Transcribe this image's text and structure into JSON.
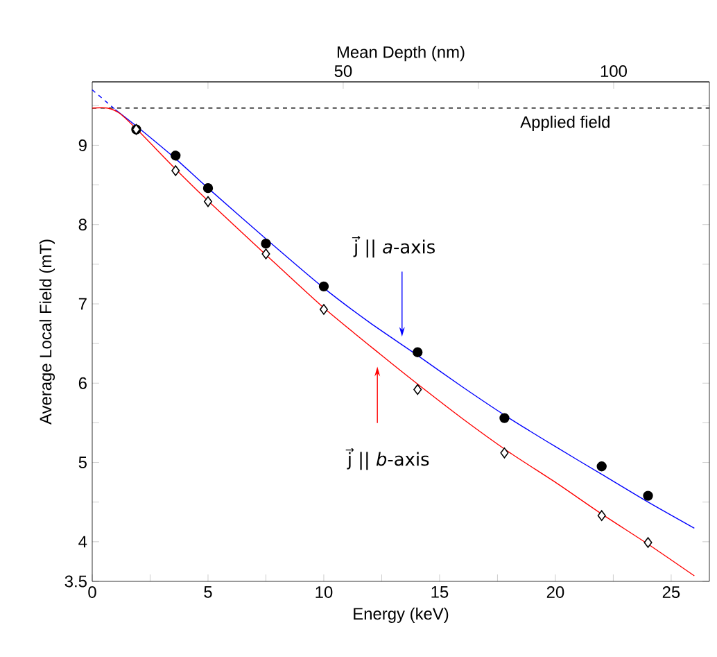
{
  "chart_data": {
    "type": "scatter",
    "xlabel": "Energy (keV)",
    "ylabel": "Average Local Field (mT)",
    "x2label": "Mean Depth (nm)",
    "xlim": [
      0,
      26.65
    ],
    "ylim": [
      3.5,
      9.8
    ],
    "x2lim": [
      3.6,
      117.7
    ],
    "xticks": [
      0,
      {
        "value": 2.5,
        "label": null
      },
      5,
      {
        "value": 7.5,
        "label": null
      },
      10,
      {
        "value": 12.5,
        "label": null
      },
      15,
      {
        "value": 17.5,
        "label": null
      },
      20,
      {
        "value": 22.5,
        "label": null
      },
      25
    ],
    "yticks": [
      3.5,
      4,
      {
        "value": 4.5,
        "label": null
      },
      5,
      {
        "value": 5.5,
        "label": null
      },
      6,
      {
        "value": 6.5,
        "label": null
      },
      7,
      {
        "value": 7.5,
        "label": null
      },
      8,
      {
        "value": 8.5,
        "label": null
      },
      9,
      {
        "value": 9.5,
        "label": null
      }
    ],
    "x2ticks": [
      {
        "value": 25,
        "label": null
      },
      50,
      {
        "value": 75,
        "label": null
      },
      100
    ],
    "grid": false,
    "ref_lines": [
      {
        "axis": "y",
        "value": 9.47,
        "label": "Applied field",
        "color": "#000000",
        "line_style": "dashed"
      }
    ],
    "annotations": [
      "j⃗ || *a*-axis",
      "j⃗ || *b*-axis"
    ],
    "series": [
      {
        "marker": "circle",
        "color": "#000000",
        "x": [
          1.9,
          3.6,
          5,
          7.5,
          10,
          14.05,
          17.8,
          22,
          24
        ],
        "values": [
          9.2,
          8.87,
          8.46,
          7.76,
          7.22,
          6.39,
          5.56,
          4.95,
          4.58
        ]
      },
      {
        "marker": "diamond",
        "color": "#000000",
        "x": [
          1.9,
          3.6,
          5,
          7.5,
          10,
          14.05,
          17.8,
          22,
          24
        ],
        "values": [
          9.2,
          8.68,
          8.29,
          7.63,
          6.93,
          5.92,
          5.12,
          4.33,
          3.99
        ]
      },
      {
        "type": "line",
        "marker": "none",
        "line_style": "solid",
        "color": "#0000ff",
        "x": [
          1,
          2,
          3.6,
          5,
          7.5,
          10,
          12,
          14,
          16,
          18,
          20,
          22,
          24,
          26
        ],
        "values": [
          9.45,
          9.22,
          8.83,
          8.46,
          7.82,
          7.2,
          6.76,
          6.36,
          5.95,
          5.56,
          5.2,
          4.85,
          4.5,
          4.17
        ]
      },
      {
        "type": "line",
        "marker": "none",
        "line_style": "solid",
        "color": "#ff0000",
        "x": [
          0,
          0.65,
          1.2,
          2,
          3.6,
          5,
          7.5,
          10,
          12.5,
          14,
          16,
          18,
          20,
          22,
          24,
          26
        ],
        "values": [
          9.47,
          9.47,
          9.4,
          9.18,
          8.7,
          8.3,
          7.62,
          6.95,
          6.35,
          6.0,
          5.55,
          5.13,
          4.75,
          4.35,
          3.97,
          3.57
        ]
      },
      {
        "type": "line",
        "marker": "none",
        "line_style": "dashed",
        "color": "#0000ff",
        "x": [
          0,
          1
        ],
        "values": [
          9.7,
          9.45
        ]
      }
    ]
  }
}
